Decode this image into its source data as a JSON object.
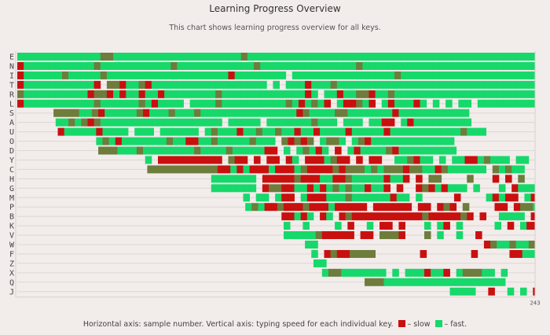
{
  "title": "Learning Progress Overview",
  "subtitle": "This chart shows learning progress overview for all keys.",
  "footer": {
    "text": "Horizontal axis: sample number. Vertical axis: typing speed for each individual key.",
    "slow_label": "– slow",
    "fast_label": "– fast."
  },
  "colors": {
    "fast": "#17d86a",
    "medium": "#6e7c3c",
    "slow": "#c8100f",
    "grid": "#dcd6d4"
  },
  "chart_data": {
    "type": "heatmap",
    "title": "Learning Progress Overview",
    "xlabel": "sample number",
    "ylabel": "typing speed for each individual key",
    "x_max": 243,
    "x_tick_labels": [
      "243"
    ],
    "bin_size": 3,
    "legend": {
      "g": "fast",
      "m": "medium",
      "r": "slow",
      ".": "no sample"
    },
    "rows": [
      {
        "key": "E",
        "start": 0,
        "bins": "gggggggggggggmmggggggggggggggggggggmggggggggggggggggggggggggggggggggggggggggggggg"
      },
      {
        "key": "N",
        "start": 0,
        "bins": "rgggggggggggmgggggggggggmggggggggggggmgggggggggggggggmggggggggggggggggggggggggggggg"
      },
      {
        "key": "I",
        "start": 0,
        "bins": "rggggggmgggggmgggggggggggggggggggrgggggggg.ggggggggggggggggmgggggggggggggggggggggg"
      },
      {
        "key": "T",
        "start": 0,
        "bins": "rgggggggggggr.mmrggmrgggggggggggggggggg.g.gggrgggmggggggggggggggggggggggggggggggggg"
      },
      {
        "key": "R",
        "start": 0,
        "bins": "mggggggggggrmmrgrggrggrggggggggmgggggggggggggrg.ggrggmmrggmgggggggggggggggggggggggg"
      },
      {
        "key": "L",
        "start": 0,
        "bins": "rgggggggggggmggggggmgrgggg.ggggmggggggggggmgrgmgr.grrmgr.grgggrg.g.g.gg.gggggggggggg"
      },
      {
        "key": "S",
        "start": 17,
        "bins": "mmmmggmrgggggmrgggmgggmgggggggggggggggrmggggmmgggggggrggggggggggg"
      },
      {
        "key": "A",
        "start": 18,
        "bins": "ggmgmrmggggggggggggggggggg.ggggg.gggggggmggg.ggg.ggrr.grggggggggg"
      },
      {
        "key": "U",
        "start": 19,
        "bins": "rgggggrgggg.ggg.gggggg.gmgggrggmggmggrggrggggrgggggrgggggggggggmggg"
      },
      {
        "key": "O",
        "start": 37,
        "bins": "gmgrgggggggmggrrggmgggggmggg.mrmrm.gmmg.gmrggggggggggggg"
      },
      {
        "key": "D",
        "start": 38,
        "bins": "mmmgggmggggggggmggggmgggggrr.g.gmgrg.r.grggggmrggggggggg"
      },
      {
        "key": "Y",
        "start": 60,
        "bins": "g.rrrrrrrrrr.mrr.r.rr.rg.rrrgmrr.r.rr..ggmrgg.g.ggrrgmggg.gg.r"
      },
      {
        "key": "C",
        "start": 61,
        "bins": "mmmmmmmmmmmrrgrgrrrgrrrgmrrrrmrmmmgmgmmmrmmggrmgggggg.mgmgg"
      },
      {
        "key": "H",
        "start": 91,
        "bins": "ggggggg.rrrrrmrrrggrrmgggggrggr.r.mm....m...r.r.m....ggggggg"
      },
      {
        "key": "G",
        "start": 91,
        "bins": "ggggggg.rmmrrggrgrgmgmggrggr.r..rmrgrggg.g...g.rggggrmgg.ggr"
      },
      {
        "key": "M",
        "start": 106,
        "bins": "g.gg.grr.grrrgggmggggggrgg.g.....r....grgrr.grggrggggmg"
      },
      {
        "key": "P",
        "start": 107,
        "bins": "gmgrrmrrrmrrrgrrrrr.rrrrrr.rr.rmr.m....rr.rmmgg.gg"
      },
      {
        "key": "B",
        "start": 124,
        "bins": "rrgrg.rg.rmrrrrrrrrrrrmrrrrrmr.r..gggg.rrmrgmrr.r"
      },
      {
        "key": "K",
        "start": 125,
        "bins": "g..g....g.r..g.rr.r...g.gr.g.....g.r.grr.rr.g"
      },
      {
        "key": "V",
        "start": 125,
        "bins": "gggggmrrrrr.rr.mmmr...m.g..g..r.........rrgrrrmr.g"
      },
      {
        "key": "W",
        "start": 135,
        "bins": "gg..........................rmggmggmrggg"
      },
      {
        "key": "F",
        "start": 138,
        "bins": "g.rmrrmmmm.......r.......r.....rrgg.rrrr.rr"
      },
      {
        "key": "Z",
        "start": 139,
        "bins": "gg"
      },
      {
        "key": "X",
        "start": 143,
        "bins": "gmmggggggg.g.gggrggr.gmmmgg.g......r.g...rr.r"
      },
      {
        "key": "Q",
        "start": 163,
        "bins": "mmmggggggggggggggggggg.......g.g...r.r..r"
      },
      {
        "key": "J",
        "start": 203,
        "bins": "gggg..r..g.g.r"
      }
    ]
  }
}
